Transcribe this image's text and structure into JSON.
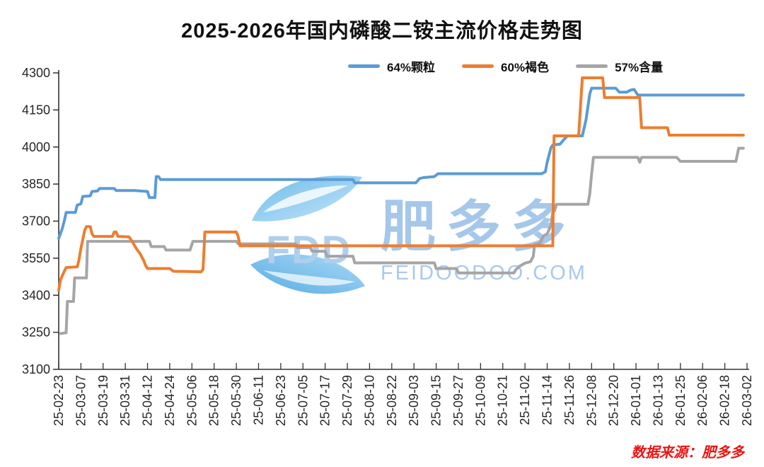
{
  "title": "2025-2026年国内磷酸二铵主流价格走势图",
  "source_note": "数据来源：肥多多",
  "watermark": {
    "logo_text": "FDD",
    "brand": "肥多多",
    "site": "FEIDOODOO.COM"
  },
  "chart_data": {
    "type": "line",
    "title": "2025-2026年国内磷酸二铵主流价格走势图",
    "legend_position": "top",
    "grid": false,
    "x_axis": {
      "start_date": "25-02-23",
      "interval_days": 12,
      "unit": "date",
      "tick_labels": [
        "25-02-23",
        "25-03-07",
        "25-03-19",
        "25-03-31",
        "25-04-12",
        "25-04-24",
        "25-05-06",
        "25-05-18",
        "25-05-30",
        "25-06-11",
        "25-06-23",
        "25-07-05",
        "25-07-17",
        "25-07-29",
        "25-08-10",
        "25-08-22",
        "25-09-03",
        "25-09-15",
        "25-09-27",
        "25-10-09",
        "25-10-21",
        "25-11-02",
        "25-11-14",
        "25-11-26",
        "25-12-08",
        "25-12-20",
        "26-01-01",
        "26-01-13",
        "26-01-25",
        "26-02-06",
        "26-02-18",
        "26-03-02"
      ]
    },
    "y_axis": {
      "min": 3100,
      "max": 4300,
      "tick_step": 150,
      "ticks": [
        3100,
        3250,
        3400,
        3550,
        3700,
        3850,
        4000,
        4150,
        4300
      ]
    },
    "series": [
      {
        "name": "64%颗粒",
        "color": "#5B9BD5",
        "draw_order": 2,
        "points": [
          [
            0,
            3630
          ],
          [
            2,
            3672
          ],
          [
            3,
            3700
          ],
          [
            4,
            3735
          ],
          [
            9,
            3735
          ],
          [
            10,
            3765
          ],
          [
            12,
            3770
          ],
          [
            13,
            3800
          ],
          [
            17,
            3802
          ],
          [
            18,
            3820
          ],
          [
            21,
            3822
          ],
          [
            22,
            3832
          ],
          [
            30,
            3832
          ],
          [
            31,
            3824
          ],
          [
            41,
            3824
          ],
          [
            48,
            3820
          ],
          [
            49,
            3795
          ],
          [
            52,
            3795
          ],
          [
            52.7,
            3880
          ],
          [
            54,
            3880
          ],
          [
            55,
            3868
          ],
          [
            159,
            3868
          ],
          [
            160,
            3855
          ],
          [
            193,
            3855
          ],
          [
            195,
            3872
          ],
          [
            197,
            3876
          ],
          [
            203,
            3880
          ],
          [
            205,
            3892
          ],
          [
            261,
            3892
          ],
          [
            263,
            3900
          ],
          [
            264,
            3938
          ],
          [
            266,
            3996
          ],
          [
            267,
            4008
          ],
          [
            271,
            4012
          ],
          [
            273,
            4030
          ],
          [
            275,
            4045
          ],
          [
            283,
            4045
          ],
          [
            285,
            4110
          ],
          [
            287,
            4215
          ],
          [
            288,
            4238
          ],
          [
            301,
            4238
          ],
          [
            303,
            4222
          ],
          [
            307,
            4222
          ],
          [
            309,
            4230
          ],
          [
            311,
            4233
          ],
          [
            313,
            4210
          ],
          [
            370,
            4210
          ]
        ]
      },
      {
        "name": "60%褐色",
        "color": "#ED7D31",
        "draw_order": 3,
        "points": [
          [
            0,
            3420
          ],
          [
            1,
            3462
          ],
          [
            2,
            3480
          ],
          [
            3,
            3496
          ],
          [
            4,
            3512
          ],
          [
            10,
            3515
          ],
          [
            11,
            3545
          ],
          [
            12,
            3590
          ],
          [
            13,
            3625
          ],
          [
            14,
            3662
          ],
          [
            15,
            3678
          ],
          [
            17,
            3678
          ],
          [
            18,
            3648
          ],
          [
            19,
            3638
          ],
          [
            29,
            3638
          ],
          [
            30,
            3656
          ],
          [
            31,
            3656
          ],
          [
            32,
            3638
          ],
          [
            38,
            3636
          ],
          [
            40,
            3614
          ],
          [
            42,
            3588
          ],
          [
            44,
            3568
          ],
          [
            46,
            3540
          ],
          [
            47,
            3520
          ],
          [
            48,
            3508
          ],
          [
            60,
            3508
          ],
          [
            62,
            3497
          ],
          [
            77,
            3495
          ],
          [
            78,
            3505
          ],
          [
            79,
            3656
          ],
          [
            96,
            3656
          ],
          [
            97,
            3638
          ],
          [
            98,
            3600
          ],
          [
            267,
            3600
          ],
          [
            267.7,
            4045
          ],
          [
            281,
            4045
          ],
          [
            282,
            4165
          ],
          [
            283,
            4280
          ],
          [
            294,
            4280
          ],
          [
            295,
            4200
          ],
          [
            314,
            4200
          ],
          [
            315,
            4078
          ],
          [
            329,
            4078
          ],
          [
            330,
            4048
          ],
          [
            370,
            4048
          ]
        ]
      },
      {
        "name": "57%含量",
        "color": "#A5A5A5",
        "draw_order": 1,
        "points": [
          [
            1,
            3245
          ],
          [
            4,
            3248
          ],
          [
            4.7,
            3375
          ],
          [
            8,
            3375
          ],
          [
            8.6,
            3470
          ],
          [
            15,
            3470
          ],
          [
            15.6,
            3618
          ],
          [
            49,
            3618
          ],
          [
            50,
            3597
          ],
          [
            57,
            3597
          ],
          [
            58,
            3583
          ],
          [
            71,
            3583
          ],
          [
            72.5,
            3618
          ],
          [
            96,
            3618
          ],
          [
            97,
            3608
          ],
          [
            128,
            3608
          ],
          [
            129,
            3593
          ],
          [
            136,
            3593
          ],
          [
            137,
            3578
          ],
          [
            144,
            3578
          ],
          [
            145,
            3558
          ],
          [
            159,
            3558
          ],
          [
            160,
            3531
          ],
          [
            203,
            3531
          ],
          [
            204,
            3508
          ],
          [
            215,
            3508
          ],
          [
            216,
            3490
          ],
          [
            246,
            3490
          ],
          [
            247,
            3503
          ],
          [
            249,
            3517
          ],
          [
            252,
            3530
          ],
          [
            255,
            3536
          ],
          [
            256.5,
            3558
          ],
          [
            257.2,
            3605
          ],
          [
            260,
            3610
          ],
          [
            262,
            3640
          ],
          [
            264,
            3648
          ],
          [
            266,
            3682
          ],
          [
            267,
            3735
          ],
          [
            268,
            3742
          ],
          [
            269,
            3768
          ],
          [
            286,
            3768
          ],
          [
            287,
            3810
          ],
          [
            288,
            3890
          ],
          [
            289,
            3958
          ],
          [
            313,
            3958
          ],
          [
            314,
            3938
          ],
          [
            315,
            3958
          ],
          [
            334,
            3958
          ],
          [
            336,
            3942
          ],
          [
            366,
            3942
          ],
          [
            367.5,
            3995
          ],
          [
            370,
            3995
          ]
        ]
      }
    ]
  }
}
